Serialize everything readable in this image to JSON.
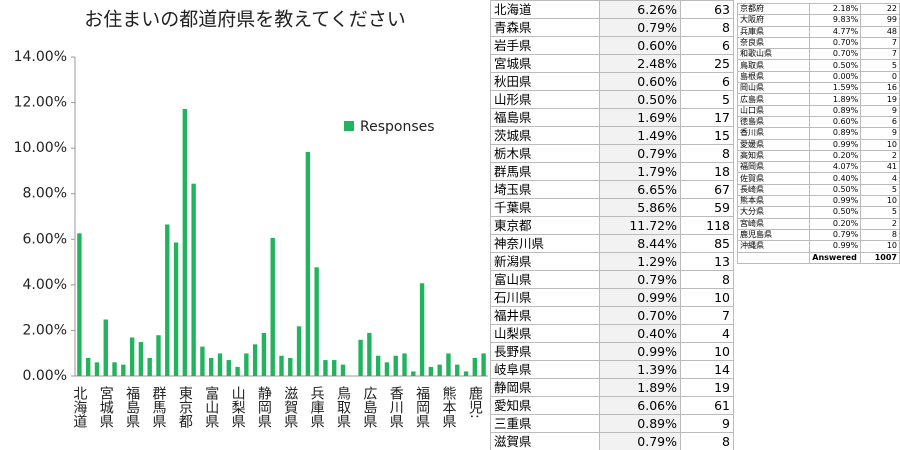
{
  "chart_data": {
    "type": "bar",
    "title": "お住まいの都道府県を教えてください",
    "categories": [
      "北海道",
      null,
      null,
      "宮城県",
      null,
      null,
      "福島県",
      null,
      null,
      "群馬県",
      null,
      null,
      "東京都",
      null,
      null,
      "富山県",
      null,
      null,
      "山梨県",
      null,
      null,
      "静岡県",
      null,
      null,
      "滋賀県",
      null,
      null,
      "兵庫県",
      null,
      null,
      "鳥取県",
      null,
      null,
      "広島県",
      null,
      null,
      "香川県",
      null,
      null,
      "福岡県",
      null,
      null,
      "熊本県",
      null,
      null,
      "鹿児:",
      null
    ],
    "series": [
      {
        "name": "Responses",
        "color": "#22b35e",
        "values": [
          6.26,
          0.79,
          0.6,
          2.48,
          0.6,
          0.5,
          1.69,
          1.49,
          0.79,
          1.79,
          6.65,
          5.86,
          11.72,
          8.44,
          1.29,
          0.79,
          0.99,
          0.7,
          0.4,
          0.99,
          1.39,
          1.89,
          6.06,
          0.89,
          0.79,
          2.18,
          9.83,
          4.77,
          0.7,
          0.7,
          0.5,
          0.0,
          1.59,
          1.89,
          0.89,
          0.6,
          0.89,
          0.99,
          0.2,
          4.07,
          0.4,
          0.5,
          0.99,
          0.5,
          0.2,
          0.79,
          0.99
        ]
      }
    ],
    "ylim": [
      0,
      14
    ],
    "yticks": [
      {
        "value": 0,
        "label": "0.00%"
      },
      {
        "value": 2,
        "label": "2.00%"
      },
      {
        "value": 4,
        "label": "4.00%"
      },
      {
        "value": 6,
        "label": "6.00%"
      },
      {
        "value": 8,
        "label": "8.00%"
      },
      {
        "value": 10,
        "label": "10.00%"
      },
      {
        "value": 12,
        "label": "12.00%"
      },
      {
        "value": 14,
        "label": "14.00%"
      }
    ],
    "grid": false
  },
  "tables": [
    {
      "rows": [
        [
          "北海道",
          "6.26%",
          "63"
        ],
        [
          "青森県",
          "0.79%",
          "8"
        ],
        [
          "岩手県",
          "0.60%",
          "6"
        ],
        [
          "宮城県",
          "2.48%",
          "25"
        ],
        [
          "秋田県",
          "0.60%",
          "6"
        ],
        [
          "山形県",
          "0.50%",
          "5"
        ],
        [
          "福島県",
          "1.69%",
          "17"
        ],
        [
          "茨城県",
          "1.49%",
          "15"
        ],
        [
          "栃木県",
          "0.79%",
          "8"
        ],
        [
          "群馬県",
          "1.79%",
          "18"
        ],
        [
          "埼玉県",
          "6.65%",
          "67"
        ],
        [
          "千葉県",
          "5.86%",
          "59"
        ],
        [
          "東京都",
          "11.72%",
          "118"
        ],
        [
          "神奈川県",
          "8.44%",
          "85"
        ],
        [
          "新潟県",
          "1.29%",
          "13"
        ],
        [
          "富山県",
          "0.79%",
          "8"
        ],
        [
          "石川県",
          "0.99%",
          "10"
        ],
        [
          "福井県",
          "0.70%",
          "7"
        ],
        [
          "山梨県",
          "0.40%",
          "4"
        ],
        [
          "長野県",
          "0.99%",
          "10"
        ],
        [
          "岐阜県",
          "1.39%",
          "14"
        ],
        [
          "静岡県",
          "1.89%",
          "19"
        ],
        [
          "愛知県",
          "6.06%",
          "61"
        ],
        [
          "三重県",
          "0.89%",
          "9"
        ],
        [
          "滋賀県",
          "0.79%",
          "8"
        ]
      ]
    },
    {
      "rows": [
        [
          "京都府",
          "2.18%",
          "22"
        ],
        [
          "大阪府",
          "9.83%",
          "99"
        ],
        [
          "兵庫県",
          "4.77%",
          "48"
        ],
        [
          "奈良県",
          "0.70%",
          "7"
        ],
        [
          "和歌山県",
          "0.70%",
          "7"
        ],
        [
          "鳥取県",
          "0.50%",
          "5"
        ],
        [
          "島根県",
          "0.00%",
          "0"
        ],
        [
          "岡山県",
          "1.59%",
          "16"
        ],
        [
          "広島県",
          "1.89%",
          "19"
        ],
        [
          "山口県",
          "0.89%",
          "9"
        ],
        [
          "徳島県",
          "0.60%",
          "6"
        ],
        [
          "香川県",
          "0.89%",
          "9"
        ],
        [
          "愛媛県",
          "0.99%",
          "10"
        ],
        [
          "高知県",
          "0.20%",
          "2"
        ],
        [
          "福岡県",
          "4.07%",
          "41"
        ],
        [
          "佐賀県",
          "0.40%",
          "4"
        ],
        [
          "長崎県",
          "0.50%",
          "5"
        ],
        [
          "熊本県",
          "0.99%",
          "10"
        ],
        [
          "大分県",
          "0.50%",
          "5"
        ],
        [
          "宮崎県",
          "0.20%",
          "2"
        ],
        [
          "鹿児島県",
          "0.79%",
          "8"
        ],
        [
          "沖縄県",
          "0.99%",
          "10"
        ]
      ],
      "footer": [
        "Answered",
        "1007"
      ]
    }
  ]
}
